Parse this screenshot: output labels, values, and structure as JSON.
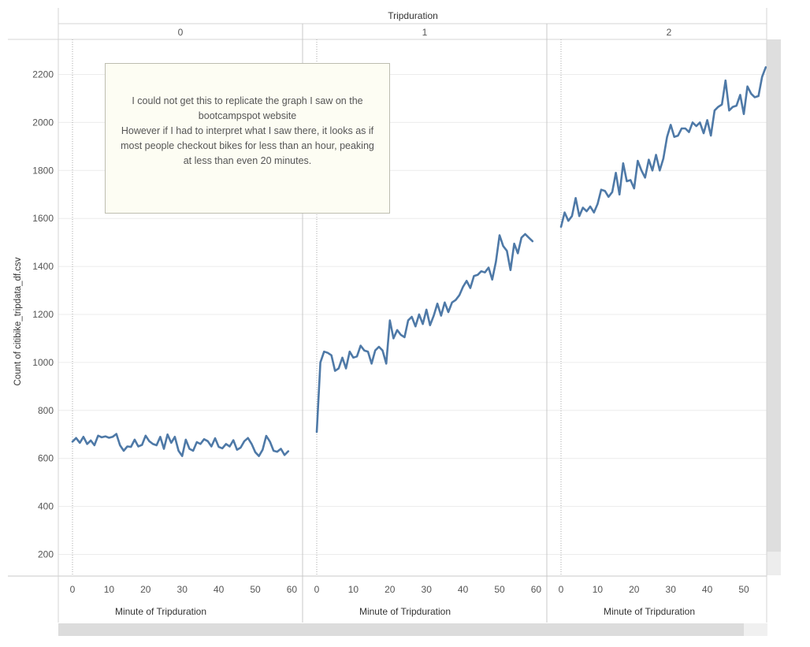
{
  "chart_data": {
    "type": "line",
    "column_header": "Tripduration",
    "panels": [
      "0",
      "1",
      "2"
    ],
    "ylabel": "Count of citibike_tripdata_df.csv",
    "xlabel": "Minute of Tripduration",
    "ylim": [
      100,
      2300
    ],
    "yticks": [
      200,
      400,
      600,
      800,
      1000,
      1200,
      1400,
      1600,
      1800,
      2000,
      2200
    ],
    "xticks": [
      0,
      10,
      20,
      30,
      40,
      50,
      60
    ],
    "xlim": [
      -3,
      61
    ],
    "grid": true,
    "color": "#4e79a7",
    "series": [
      {
        "x": [
          0,
          1,
          2,
          3,
          4,
          5,
          6,
          7,
          8,
          9,
          10,
          11,
          12,
          13,
          14,
          15,
          16,
          17,
          18,
          19,
          20,
          21,
          22,
          23,
          24,
          25,
          26,
          27,
          28,
          29,
          30,
          31,
          32,
          33,
          34,
          35,
          36,
          37,
          38,
          39,
          40,
          41,
          42,
          43,
          44,
          45,
          46,
          47,
          48,
          49,
          50,
          51,
          52,
          53,
          54,
          55,
          56,
          57,
          58,
          59
        ],
        "values": [
          670,
          685,
          665,
          690,
          660,
          675,
          655,
          695,
          688,
          692,
          686,
          690,
          702,
          655,
          632,
          650,
          648,
          678,
          650,
          656,
          695,
          672,
          660,
          655,
          690,
          640,
          700,
          665,
          690,
          632,
          610,
          678,
          640,
          632,
          668,
          660,
          680,
          672,
          650,
          684,
          648,
          642,
          660,
          650,
          676,
          636,
          645,
          672,
          685,
          660,
          626,
          610,
          636,
          694,
          670,
          632,
          628,
          640,
          614,
          630
        ]
      },
      {
        "x": [
          0,
          1,
          2,
          3,
          4,
          5,
          6,
          7,
          8,
          9,
          10,
          11,
          12,
          13,
          14,
          15,
          16,
          17,
          18,
          19,
          20,
          21,
          22,
          23,
          24,
          25,
          26,
          27,
          28,
          29,
          30,
          31,
          32,
          33,
          34,
          35,
          36,
          37,
          38,
          39,
          40,
          41,
          42,
          43,
          44,
          45,
          46,
          47,
          48,
          49,
          50,
          51,
          52,
          53,
          54,
          55,
          56,
          57,
          58,
          59
        ],
        "values": [
          710,
          1000,
          1045,
          1040,
          1030,
          965,
          975,
          1020,
          975,
          1045,
          1020,
          1025,
          1070,
          1050,
          1045,
          995,
          1050,
          1065,
          1050,
          995,
          1175,
          1100,
          1135,
          1115,
          1105,
          1175,
          1190,
          1150,
          1200,
          1160,
          1220,
          1155,
          1195,
          1245,
          1195,
          1250,
          1210,
          1250,
          1260,
          1280,
          1315,
          1340,
          1310,
          1360,
          1365,
          1380,
          1375,
          1395,
          1345,
          1420,
          1530,
          1485,
          1465,
          1385,
          1495,
          1455,
          1520,
          1535,
          1520,
          1505
        ]
      },
      {
        "x": [
          0,
          1,
          2,
          3,
          4,
          5,
          6,
          7,
          8,
          9,
          10,
          11,
          12,
          13,
          14,
          15,
          16,
          17,
          18,
          19,
          20,
          21,
          22,
          23,
          24,
          25,
          26,
          27,
          28,
          29,
          30,
          31,
          32,
          33,
          34,
          35,
          36,
          37,
          38,
          39,
          40,
          41,
          42,
          43,
          44,
          45,
          46,
          47,
          48,
          49,
          50,
          51,
          52,
          53,
          54,
          55,
          56
        ],
        "values": [
          1565,
          1625,
          1590,
          1610,
          1685,
          1610,
          1645,
          1630,
          1650,
          1625,
          1660,
          1720,
          1715,
          1690,
          1710,
          1790,
          1700,
          1830,
          1755,
          1760,
          1725,
          1840,
          1800,
          1770,
          1845,
          1800,
          1865,
          1800,
          1850,
          1940,
          1990,
          1940,
          1945,
          1975,
          1975,
          1960,
          2000,
          1985,
          2000,
          1955,
          2010,
          1945,
          2050,
          2065,
          2075,
          2175,
          2050,
          2065,
          2070,
          2115,
          2035,
          2150,
          2120,
          2105,
          2110,
          2190,
          2230
        ]
      }
    ]
  },
  "annotation": {
    "lines": [
      "I could not get this to replicate the graph I saw on the",
      "bootcampspot website",
      "However if I had to interpret what I saw there, it looks as if",
      "most people checkout bikes for less than an hour, peaking",
      "at less than even 20 minutes."
    ]
  }
}
